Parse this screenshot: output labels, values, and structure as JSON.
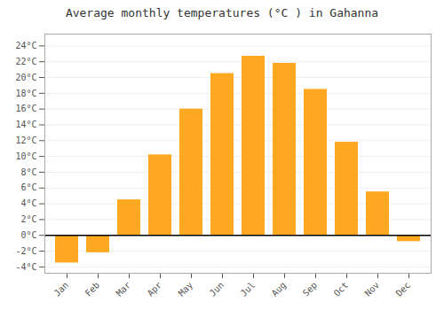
{
  "chart_data": {
    "type": "bar",
    "title": "Average monthly temperatures (°C ) in Gahanna",
    "categories": [
      "Jan",
      "Feb",
      "Mar",
      "Apr",
      "May",
      "Jun",
      "Jul",
      "Aug",
      "Sep",
      "Oct",
      "Nov",
      "Dec"
    ],
    "values": [
      -3.5,
      -2.2,
      4.5,
      10.2,
      16.0,
      20.5,
      22.7,
      21.8,
      18.5,
      11.8,
      5.5,
      -0.8
    ],
    "color": "#FFA820",
    "ylim": [
      -4.8,
      25.5
    ],
    "yticks": [
      {
        "value": -4,
        "label": "-4°C"
      },
      {
        "value": -2,
        "label": "-2°C"
      },
      {
        "value": 0,
        "label": "0°C"
      },
      {
        "value": 2,
        "label": "2°C"
      },
      {
        "value": 4,
        "label": "4°C"
      },
      {
        "value": 6,
        "label": "6°C"
      },
      {
        "value": 8,
        "label": "8°C"
      },
      {
        "value": 10,
        "label": "10°C"
      },
      {
        "value": 12,
        "label": "12°C"
      },
      {
        "value": 14,
        "label": "14°C"
      },
      {
        "value": 16,
        "label": "16°C"
      },
      {
        "value": 18,
        "label": "18°C"
      },
      {
        "value": 20,
        "label": "20°C"
      },
      {
        "value": 22,
        "label": "22°C"
      },
      {
        "value": 24,
        "label": "24°C"
      }
    ],
    "grid": true
  }
}
